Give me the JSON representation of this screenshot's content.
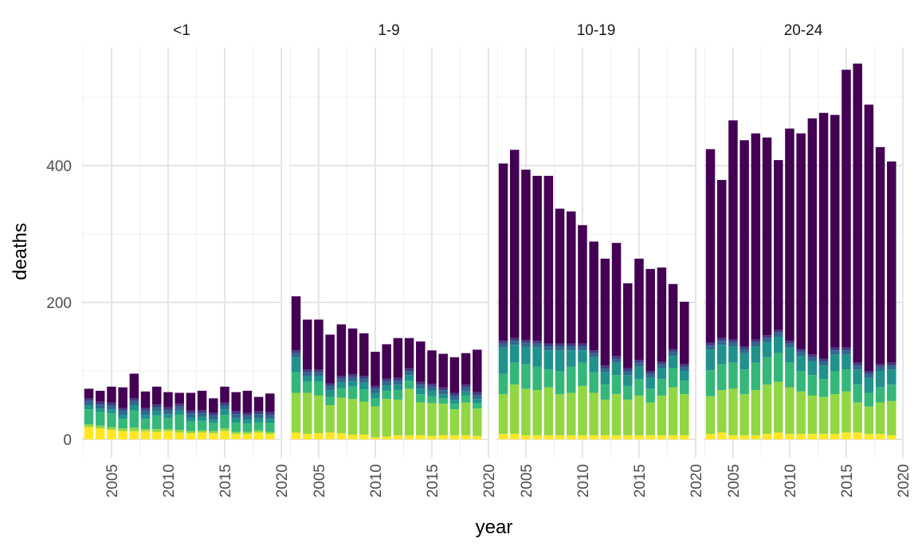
{
  "chart_data": {
    "type": "bar",
    "stacked": true,
    "xlabel": "year",
    "ylabel": "deaths",
    "ylim": [
      0,
      560
    ],
    "y_ticks": [
      0,
      200,
      400
    ],
    "x_ticks": [
      2005,
      2010,
      2015,
      2020
    ],
    "x_range": [
      2002.4,
      2020
    ],
    "grid": true,
    "legend": "none",
    "panels": [
      {
        "title": "<1",
        "years": [
          2003,
          2004,
          2005,
          2006,
          2007,
          2008,
          2009,
          2010,
          2011,
          2012,
          2013,
          2014,
          2015,
          2016,
          2017,
          2018,
          2019
        ],
        "yellow": [
          18,
          16,
          14,
          12,
          12,
          12,
          11,
          12,
          10,
          9,
          10,
          9,
          12,
          8,
          8,
          10,
          8
        ],
        "lime": [
          4,
          4,
          4,
          4,
          5,
          3,
          4,
          3,
          4,
          3,
          3,
          3,
          4,
          3,
          3,
          3,
          3
        ],
        "green": [
          22,
          20,
          20,
          14,
          25,
          15,
          20,
          16,
          22,
          14,
          14,
          12,
          20,
          14,
          12,
          12,
          13
        ],
        "teal": [
          6,
          5,
          6,
          6,
          8,
          6,
          6,
          6,
          6,
          6,
          6,
          5,
          8,
          6,
          6,
          6,
          6
        ],
        "total": [
          74,
          71,
          77,
          76,
          96,
          70,
          77,
          69,
          68,
          68,
          71,
          60,
          77,
          69,
          71,
          62,
          67
        ]
      },
      {
        "title": "1-9",
        "years": [
          2003,
          2004,
          2005,
          2006,
          2007,
          2008,
          2009,
          2010,
          2011,
          2012,
          2013,
          2014,
          2015,
          2016,
          2017,
          2018,
          2019
        ],
        "yellow": [
          10,
          8,
          9,
          10,
          9,
          7,
          7,
          3,
          4,
          6,
          6,
          6,
          5,
          6,
          6,
          6,
          5
        ],
        "lime": [
          58,
          60,
          55,
          40,
          52,
          52,
          48,
          45,
          55,
          52,
          68,
          48,
          48,
          46,
          38,
          48,
          40
        ],
        "green": [
          30,
          16,
          20,
          12,
          14,
          18,
          18,
          12,
          12,
          14,
          12,
          12,
          10,
          8,
          8,
          10,
          8
        ],
        "teal": [
          22,
          8,
          8,
          10,
          8,
          8,
          10,
          8,
          8,
          8,
          8,
          8,
          8,
          6,
          6,
          6,
          6
        ],
        "total": [
          209,
          175,
          175,
          153,
          168,
          162,
          155,
          128,
          139,
          148,
          148,
          143,
          130,
          125,
          120,
          126,
          131
        ]
      },
      {
        "title": "10-19",
        "years": [
          2003,
          2004,
          2005,
          2006,
          2007,
          2008,
          2009,
          2010,
          2011,
          2012,
          2013,
          2014,
          2015,
          2016,
          2017,
          2018,
          2019
        ],
        "yellow": [
          8,
          8,
          6,
          6,
          6,
          6,
          6,
          6,
          6,
          6,
          6,
          6,
          6,
          6,
          6,
          6,
          6
        ],
        "lime": [
          58,
          72,
          68,
          66,
          70,
          60,
          62,
          72,
          62,
          52,
          60,
          52,
          58,
          48,
          58,
          70,
          60
        ],
        "green": [
          30,
          32,
          36,
          34,
          26,
          34,
          38,
          34,
          30,
          22,
          28,
          20,
          24,
          20,
          24,
          28,
          20
        ],
        "teal": [
          38,
          26,
          25,
          28,
          28,
          30,
          24,
          18,
          22,
          18,
          18,
          16,
          18,
          16,
          16,
          18,
          14
        ],
        "total": [
          403,
          423,
          394,
          385,
          385,
          337,
          333,
          313,
          289,
          264,
          287,
          228,
          264,
          249,
          251,
          227,
          201
        ]
      },
      {
        "title": "20-24",
        "years": [
          2003,
          2004,
          2005,
          2006,
          2007,
          2008,
          2009,
          2010,
          2011,
          2012,
          2013,
          2014,
          2015,
          2016,
          2017,
          2018,
          2019
        ],
        "yellow": [
          8,
          10,
          6,
          6,
          6,
          8,
          10,
          8,
          8,
          8,
          8,
          8,
          10,
          10,
          8,
          8,
          6
        ],
        "lime": [
          55,
          62,
          68,
          60,
          66,
          72,
          74,
          68,
          62,
          56,
          54,
          58,
          60,
          44,
          40,
          46,
          50
        ],
        "green": [
          38,
          38,
          38,
          36,
          40,
          40,
          42,
          36,
          30,
          30,
          26,
          34,
          32,
          26,
          20,
          22,
          24
        ],
        "teal": [
          30,
          28,
          24,
          24,
          24,
          22,
          24,
          22,
          22,
          20,
          20,
          24,
          22,
          22,
          22,
          24,
          22
        ],
        "total": [
          424,
          379,
          466,
          437,
          447,
          441,
          408,
          454,
          447,
          469,
          477,
          474,
          540,
          549,
          489,
          427,
          406
        ]
      }
    ],
    "colors": {
      "yellow": "#fde725",
      "lime": "#90d743",
      "green": "#35b779",
      "teal": "#21918c",
      "blue": "#31688e",
      "indigo": "#443983",
      "purple": "#440154"
    }
  }
}
